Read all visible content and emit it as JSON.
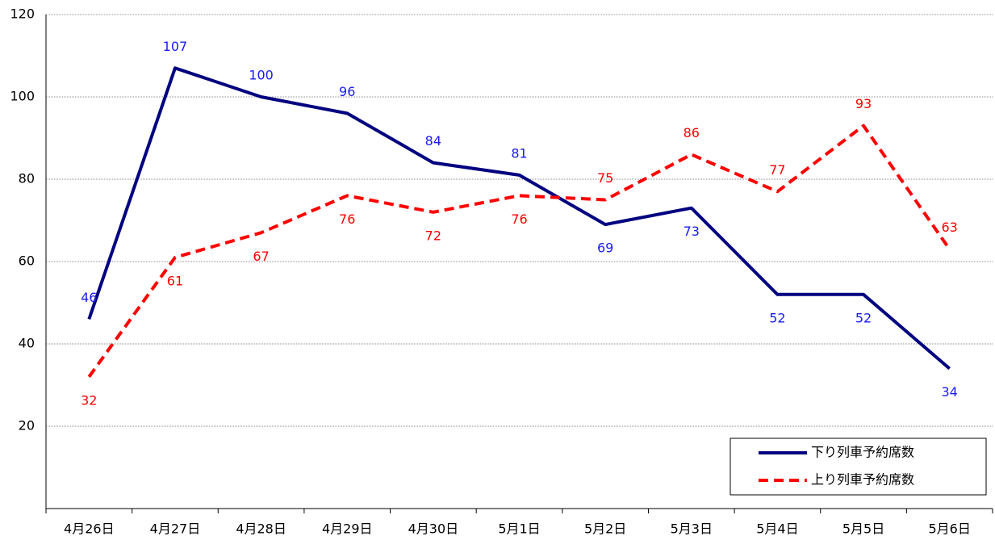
{
  "chart_data": {
    "type": "line",
    "categories": [
      "4月26日",
      "4月27日",
      "4月28日",
      "4月29日",
      "4月30日",
      "5月1日",
      "5月2日",
      "5月3日",
      "5月4日",
      "5月5日",
      "5月6日"
    ],
    "series": [
      {
        "name": "下り列車予約席数",
        "color": "#000080",
        "label_color": "#1a1aff",
        "dashed": false,
        "values": [
          46,
          107,
          100,
          96,
          84,
          81,
          69,
          73,
          52,
          52,
          34
        ]
      },
      {
        "name": "上り列車予約席数",
        "color": "#ff0000",
        "label_color": "#ff0000",
        "dashed": true,
        "values": [
          32,
          61,
          67,
          76,
          72,
          76,
          75,
          86,
          77,
          93,
          63
        ]
      }
    ],
    "ylim": [
      0,
      120
    ],
    "yticks": [
      20,
      40,
      60,
      80,
      100,
      120
    ],
    "grid": true,
    "legend": "lower right"
  }
}
